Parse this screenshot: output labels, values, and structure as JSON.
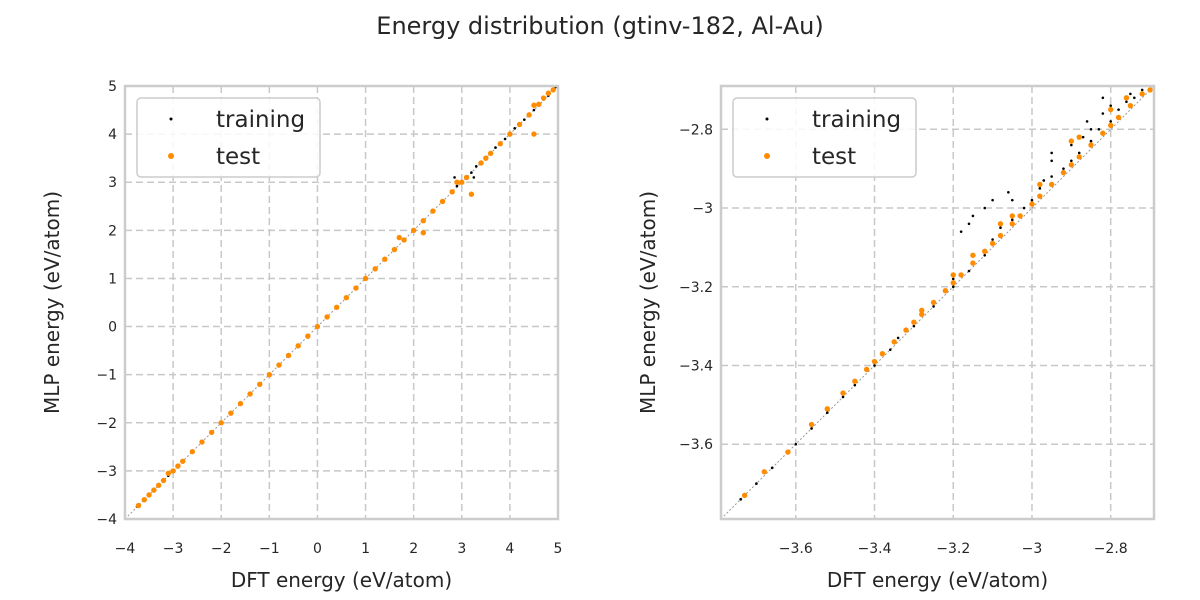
{
  "figure": {
    "title": "Energy distribution (gtinv-182, Al-Au)"
  },
  "colors": {
    "training": "#000000",
    "test": "#ff8c00",
    "grid": "#c8c8c8",
    "frame": "#cccccc",
    "diagonal": "#999999"
  },
  "chart_data": [
    {
      "type": "scatter",
      "title": "",
      "xlabel": "DFT energy (eV/atom)",
      "ylabel": "MLP energy (eV/atom)",
      "xlim": [
        -4,
        5
      ],
      "ylim": [
        -4,
        5
      ],
      "xticks": [
        -4,
        -3,
        -2,
        -1,
        0,
        1,
        2,
        3,
        4,
        5
      ],
      "yticks": [
        -4,
        -3,
        -2,
        -1,
        0,
        1,
        2,
        3,
        4,
        5
      ],
      "grid": true,
      "legend_position": "top-left",
      "reference_line": "y = x",
      "series": [
        {
          "name": "training",
          "points": [
            [
              -3.75,
              -3.74
            ],
            [
              -3.7,
              -3.7
            ],
            [
              -3.6,
              -3.6
            ],
            [
              -3.5,
              -3.5
            ],
            [
              -3.4,
              -3.4
            ],
            [
              -3.3,
              -3.3
            ],
            [
              -3.2,
              -3.2
            ],
            [
              -3.1,
              -3.1
            ],
            [
              -3.0,
              -3.0
            ],
            [
              -2.9,
              -2.9
            ],
            [
              -2.8,
              -2.8
            ],
            [
              -2.6,
              -2.6
            ],
            [
              -2.4,
              -2.4
            ],
            [
              -2.2,
              -2.2
            ],
            [
              -2.0,
              -2.0
            ],
            [
              -1.8,
              -1.8
            ],
            [
              -1.6,
              -1.6
            ],
            [
              -1.4,
              -1.4
            ],
            [
              -1.2,
              -1.2
            ],
            [
              -1.0,
              -1.0
            ],
            [
              -0.8,
              -0.8
            ],
            [
              -0.6,
              -0.6
            ],
            [
              -0.4,
              -0.4
            ],
            [
              -0.2,
              -0.2
            ],
            [
              0.0,
              0.0
            ],
            [
              0.2,
              0.2
            ],
            [
              0.4,
              0.4
            ],
            [
              0.6,
              0.6
            ],
            [
              0.8,
              0.8
            ],
            [
              1.0,
              1.0
            ],
            [
              1.2,
              1.2
            ],
            [
              1.4,
              1.4
            ],
            [
              1.6,
              1.6
            ],
            [
              1.8,
              1.8
            ],
            [
              2.0,
              2.0
            ],
            [
              2.2,
              2.2
            ],
            [
              2.4,
              2.4
            ],
            [
              2.6,
              2.6
            ],
            [
              2.8,
              2.8
            ],
            [
              2.85,
              3.1
            ],
            [
              2.9,
              2.92
            ],
            [
              3.0,
              2.98
            ],
            [
              3.2,
              3.2
            ],
            [
              3.25,
              3.1
            ],
            [
              3.3,
              3.33
            ],
            [
              3.4,
              3.38
            ],
            [
              3.5,
              3.5
            ],
            [
              3.6,
              3.6
            ],
            [
              3.7,
              3.72
            ],
            [
              3.8,
              3.8
            ],
            [
              3.9,
              3.9
            ],
            [
              4.0,
              4.0
            ],
            [
              4.1,
              4.12
            ],
            [
              4.2,
              4.2
            ],
            [
              4.3,
              4.3
            ],
            [
              4.4,
              4.42
            ],
            [
              4.5,
              4.5
            ],
            [
              4.6,
              4.6
            ],
            [
              4.7,
              4.72
            ],
            [
              4.8,
              4.8
            ],
            [
              4.9,
              4.9
            ],
            [
              4.95,
              4.98
            ]
          ]
        },
        {
          "name": "test",
          "points": [
            [
              -3.72,
              -3.72
            ],
            [
              -3.6,
              -3.6
            ],
            [
              -3.5,
              -3.5
            ],
            [
              -3.4,
              -3.4
            ],
            [
              -3.3,
              -3.3
            ],
            [
              -3.2,
              -3.2
            ],
            [
              -3.1,
              -3.05
            ],
            [
              -3.0,
              -3.0
            ],
            [
              -2.9,
              -2.9
            ],
            [
              -2.8,
              -2.8
            ],
            [
              -2.6,
              -2.6
            ],
            [
              -2.4,
              -2.4
            ],
            [
              -2.2,
              -2.2
            ],
            [
              -2.0,
              -2.0
            ],
            [
              -1.8,
              -1.8
            ],
            [
              -1.6,
              -1.6
            ],
            [
              -1.4,
              -1.4
            ],
            [
              -1.2,
              -1.2
            ],
            [
              -1.0,
              -1.0
            ],
            [
              -0.8,
              -0.8
            ],
            [
              -0.6,
              -0.6
            ],
            [
              -0.4,
              -0.4
            ],
            [
              -0.2,
              -0.2
            ],
            [
              0.0,
              0.0
            ],
            [
              0.2,
              0.2
            ],
            [
              0.4,
              0.4
            ],
            [
              0.6,
              0.6
            ],
            [
              0.8,
              0.8
            ],
            [
              1.0,
              1.0
            ],
            [
              1.2,
              1.2
            ],
            [
              1.4,
              1.4
            ],
            [
              1.6,
              1.6
            ],
            [
              1.7,
              1.85
            ],
            [
              1.8,
              1.8
            ],
            [
              2.0,
              2.0
            ],
            [
              2.2,
              2.2
            ],
            [
              2.2,
              1.95
            ],
            [
              2.4,
              2.4
            ],
            [
              2.6,
              2.6
            ],
            [
              2.8,
              2.8
            ],
            [
              2.9,
              3.0
            ],
            [
              3.0,
              3.0
            ],
            [
              3.1,
              3.1
            ],
            [
              3.2,
              2.75
            ],
            [
              3.4,
              3.4
            ],
            [
              3.5,
              3.5
            ],
            [
              3.6,
              3.6
            ],
            [
              3.8,
              3.8
            ],
            [
              4.0,
              4.0
            ],
            [
              4.2,
              4.2
            ],
            [
              4.4,
              4.4
            ],
            [
              4.5,
              4.0
            ],
            [
              4.5,
              4.6
            ],
            [
              4.6,
              4.62
            ],
            [
              4.7,
              4.75
            ],
            [
              4.8,
              4.85
            ],
            [
              4.9,
              4.92
            ]
          ]
        }
      ]
    },
    {
      "type": "scatter",
      "title": "",
      "xlabel": "DFT energy (eV/atom)",
      "ylabel": "MLP energy (eV/atom)",
      "xlim": [
        -3.79,
        -2.69
      ],
      "ylim": [
        -3.79,
        -2.69
      ],
      "xticks": [
        -3.6,
        -3.4,
        -3.2,
        -3.0,
        -2.8
      ],
      "yticks": [
        -3.6,
        -3.4,
        -3.2,
        -3.0,
        -2.8
      ],
      "grid": true,
      "legend_position": "top-left",
      "reference_line": "y = x",
      "series": [
        {
          "name": "training",
          "points": [
            [
              -3.74,
              -3.74
            ],
            [
              -3.7,
              -3.7
            ],
            [
              -3.66,
              -3.66
            ],
            [
              -3.62,
              -3.62
            ],
            [
              -3.6,
              -3.6
            ],
            [
              -3.56,
              -3.56
            ],
            [
              -3.52,
              -3.52
            ],
            [
              -3.48,
              -3.48
            ],
            [
              -3.45,
              -3.45
            ],
            [
              -3.4,
              -3.4
            ],
            [
              -3.36,
              -3.36
            ],
            [
              -3.3,
              -3.3
            ],
            [
              -3.25,
              -3.25
            ],
            [
              -3.2,
              -3.2
            ],
            [
              -3.16,
              -3.16
            ],
            [
              -3.12,
              -3.12
            ],
            [
              -3.1,
              -3.08
            ],
            [
              -3.08,
              -3.05
            ],
            [
              -3.05,
              -3.03
            ],
            [
              -3.05,
              -2.98
            ],
            [
              -3.02,
              -3.0
            ],
            [
              -3.0,
              -2.98
            ],
            [
              -2.98,
              -2.95
            ],
            [
              -2.97,
              -2.93
            ],
            [
              -2.95,
              -2.92
            ],
            [
              -2.95,
              -2.88
            ],
            [
              -2.92,
              -2.9
            ],
            [
              -2.9,
              -2.88
            ],
            [
              -2.9,
              -2.84
            ],
            [
              -2.88,
              -2.86
            ],
            [
              -2.87,
              -2.82
            ],
            [
              -2.85,
              -2.83
            ],
            [
              -2.85,
              -2.8
            ],
            [
              -2.83,
              -2.8
            ],
            [
              -2.82,
              -2.76
            ],
            [
              -2.8,
              -2.78
            ],
            [
              -2.8,
              -2.74
            ],
            [
              -2.78,
              -2.75
            ],
            [
              -2.76,
              -2.73
            ],
            [
              -2.75,
              -2.71
            ],
            [
              -2.74,
              -2.72
            ],
            [
              -2.72,
              -2.7
            ],
            [
              -3.18,
              -3.06
            ],
            [
              -3.16,
              -3.04
            ],
            [
              -3.15,
              -3.02
            ],
            [
              -3.12,
              -3.0
            ],
            [
              -3.1,
              -2.98
            ],
            [
              -3.06,
              -2.96
            ],
            [
              -3.2,
              -3.18
            ],
            [
              -3.22,
              -3.21
            ],
            [
              -3.28,
              -3.27
            ],
            [
              -3.34,
              -3.33
            ],
            [
              -2.95,
              -2.86
            ],
            [
              -2.86,
              -2.78
            ],
            [
              -2.82,
              -2.72
            ]
          ]
        },
        {
          "name": "test",
          "points": [
            [
              -3.73,
              -3.73
            ],
            [
              -3.68,
              -3.67
            ],
            [
              -3.62,
              -3.62
            ],
            [
              -3.56,
              -3.55
            ],
            [
              -3.52,
              -3.51
            ],
            [
              -3.48,
              -3.47
            ],
            [
              -3.45,
              -3.44
            ],
            [
              -3.42,
              -3.41
            ],
            [
              -3.4,
              -3.39
            ],
            [
              -3.38,
              -3.37
            ],
            [
              -3.35,
              -3.34
            ],
            [
              -3.32,
              -3.31
            ],
            [
              -3.3,
              -3.29
            ],
            [
              -3.28,
              -3.27
            ],
            [
              -3.25,
              -3.24
            ],
            [
              -3.22,
              -3.21
            ],
            [
              -3.2,
              -3.19
            ],
            [
              -3.18,
              -3.17
            ],
            [
              -3.15,
              -3.14
            ],
            [
              -3.12,
              -3.11
            ],
            [
              -3.1,
              -3.09
            ],
            [
              -3.08,
              -3.07
            ],
            [
              -3.05,
              -3.04
            ],
            [
              -3.03,
              -3.02
            ],
            [
              -3.0,
              -2.99
            ],
            [
              -2.98,
              -2.97
            ],
            [
              -2.95,
              -2.94
            ],
            [
              -2.92,
              -2.91
            ],
            [
              -2.9,
              -2.89
            ],
            [
              -2.88,
              -2.87
            ],
            [
              -2.85,
              -2.84
            ],
            [
              -2.82,
              -2.81
            ],
            [
              -2.8,
              -2.79
            ],
            [
              -2.78,
              -2.77
            ],
            [
              -2.75,
              -2.74
            ],
            [
              -2.72,
              -2.71
            ],
            [
              -2.7,
              -2.7
            ],
            [
              -3.28,
              -3.26
            ],
            [
              -3.2,
              -3.17
            ],
            [
              -3.15,
              -3.12
            ],
            [
              -3.08,
              -3.04
            ],
            [
              -3.05,
              -3.02
            ],
            [
              -2.98,
              -2.94
            ],
            [
              -2.9,
              -2.83
            ],
            [
              -2.88,
              -2.82
            ],
            [
              -2.8,
              -2.75
            ],
            [
              -2.76,
              -2.72
            ]
          ]
        }
      ]
    }
  ]
}
